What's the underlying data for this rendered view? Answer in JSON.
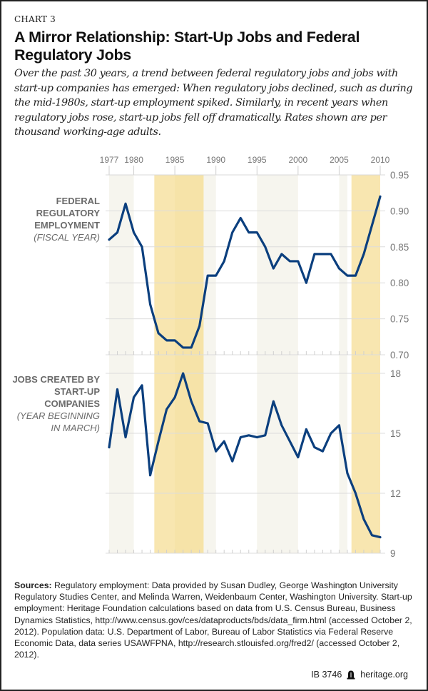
{
  "header": {
    "chart_label": "CHART 3",
    "title": "A Mirror Relationship: Start-Up Jobs and Federal Regulatory Jobs",
    "subtitle": "Over the past 30 years, a trend between federal regulatory jobs and jobs with start-up companies has emerged: When regulatory jobs declined, such as during the mid-1980s, start-up employment spiked. Similarly, in recent years when regulatory jobs rose, start-up jobs fell off dramatically. Rates shown are per thousand working-age adults."
  },
  "panels": {
    "top": {
      "label": "FEDERAL REGULATORY EMPLOYMENT",
      "sublabel": "(FISCAL YEAR)"
    },
    "bottom": {
      "label": "JOBS CREATED BY START-UP COMPANIES",
      "sublabel": "(YEAR BEGINNING IN MARCH)"
    }
  },
  "colors": {
    "line": "#0b3f7e",
    "band_yellow": "#f8e6b0",
    "band_gray": "#f6f5ee",
    "grid": "#dcdcdc",
    "axis_text": "#777777"
  },
  "chart_data": [
    {
      "type": "line",
      "title": "Federal Regulatory Employment (Fiscal Year)",
      "xlabel": "",
      "ylabel": "Per thousand working-age adults",
      "x": [
        1977,
        1978,
        1979,
        1980,
        1981,
        1982,
        1983,
        1984,
        1985,
        1986,
        1987,
        1988,
        1989,
        1990,
        1991,
        1992,
        1993,
        1994,
        1995,
        1996,
        1997,
        1998,
        1999,
        2000,
        2001,
        2002,
        2003,
        2004,
        2005,
        2006,
        2007,
        2008,
        2009,
        2010
      ],
      "series": [
        {
          "name": "Federal regulatory employment",
          "values": [
            0.86,
            0.87,
            0.91,
            0.87,
            0.85,
            0.77,
            0.73,
            0.72,
            0.72,
            0.71,
            0.71,
            0.74,
            0.81,
            0.81,
            0.83,
            0.87,
            0.89,
            0.87,
            0.87,
            0.85,
            0.82,
            0.84,
            0.83,
            0.83,
            0.8,
            0.84,
            0.84,
            0.84,
            0.82,
            0.81,
            0.81,
            0.84,
            0.88,
            0.92
          ]
        }
      ],
      "x_ticks": [
        "1977",
        "1980",
        "1985",
        "1990",
        "1995",
        "2000",
        "2005",
        "2010"
      ],
      "y_ticks": [
        "0.95",
        "0.90",
        "0.85",
        "0.80",
        "0.75",
        "0.70"
      ],
      "xlim": [
        1977,
        2010
      ],
      "ylim": [
        0.7,
        0.95
      ],
      "grid": true,
      "legend": "none"
    },
    {
      "type": "line",
      "title": "Jobs Created by Start-Up Companies (Year Beginning in March)",
      "xlabel": "",
      "ylabel": "Per thousand working-age adults",
      "x": [
        1977,
        1978,
        1979,
        1980,
        1981,
        1982,
        1983,
        1984,
        1985,
        1986,
        1987,
        1988,
        1989,
        1990,
        1991,
        1992,
        1993,
        1994,
        1995,
        1996,
        1997,
        1998,
        1999,
        2000,
        2001,
        2002,
        2003,
        2004,
        2005,
        2006,
        2007,
        2008,
        2009,
        2010
      ],
      "series": [
        {
          "name": "Start-up jobs",
          "values": [
            14.3,
            17.2,
            14.8,
            16.8,
            17.4,
            12.9,
            14.6,
            16.2,
            16.8,
            18.0,
            16.6,
            15.6,
            15.5,
            14.1,
            14.6,
            13.6,
            14.8,
            14.9,
            14.8,
            14.9,
            16.6,
            15.4,
            14.6,
            13.8,
            15.2,
            14.3,
            14.1,
            15.0,
            15.4,
            13.0,
            12.0,
            10.7,
            9.9,
            9.8
          ]
        }
      ],
      "y_ticks": [
        "18",
        "15",
        "12",
        "9"
      ],
      "xlim": [
        1977,
        2010
      ],
      "ylim": [
        9,
        18
      ],
      "grid": true,
      "legend": "none"
    }
  ],
  "shading": {
    "gray": [
      [
        1977,
        1980
      ],
      [
        1988.5,
        1990
      ],
      [
        1995,
        2000
      ],
      [
        2005,
        2006
      ]
    ],
    "yellow": [
      [
        1982.5,
        1988.5
      ],
      [
        2006.5,
        2010
      ]
    ]
  },
  "sources": {
    "label": "Sources:",
    "text": " Regulatory employment: Data provided by Susan Dudley, George Washington University Regulatory Studies Center, and Melinda Warren, Weidenbaum Center, Washington University. Start-up employment: Heritage Foundation calculations based on data from U.S. Census Bureau, Business Dynamics Statistics, http://www.census.gov/ces/dataproducts/bds/data_firm.html (accessed October 2, 2012). Population data: U.S. Department of Labor, Bureau of Labor Statistics via Federal Reserve Economic Data, data series USAWFPNA, http://research.stlouisfed.org/fred2/ (accessed October 2, 2012)."
  },
  "footer": {
    "id": "IB 3746",
    "icon": "liberty-bell-icon",
    "site": "heritage.org"
  }
}
